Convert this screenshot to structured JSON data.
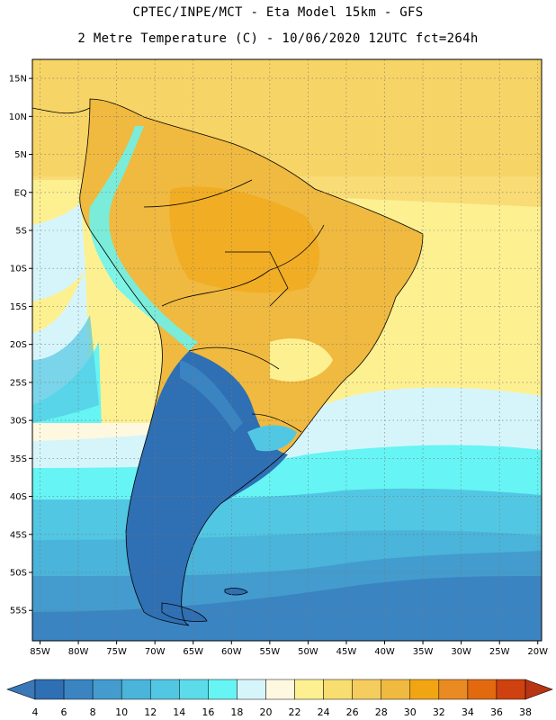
{
  "header": {
    "line1": "CPTEC/INPE/MCT -  Eta Model 15km - GFS",
    "line2": "2 Metre Temperature (C) - 10/06/2020 12UTC fct=264h"
  },
  "map": {
    "lon_range": [
      -86,
      -19.5
    ],
    "lat_range": [
      -59,
      17.5
    ],
    "lat_labels": [
      "15N",
      "10N",
      "5N",
      "EQ",
      "5S",
      "10S",
      "15S",
      "20S",
      "25S",
      "30S",
      "35S",
      "40S",
      "45S",
      "50S",
      "55S"
    ],
    "lat_values": [
      15,
      10,
      5,
      0,
      -5,
      -10,
      -15,
      -20,
      -25,
      -30,
      -35,
      -40,
      -45,
      -50,
      -55
    ],
    "lon_labels": [
      "85W",
      "80W",
      "75W",
      "70W",
      "65W",
      "60W",
      "55W",
      "50W",
      "45W",
      "40W",
      "35W",
      "30W",
      "25W",
      "20W"
    ],
    "lon_values": [
      -85,
      -80,
      -75,
      -70,
      -65,
      -60,
      -55,
      -50,
      -45,
      -40,
      -35,
      -30,
      -25,
      -20
    ],
    "grid": "dotted"
  },
  "colorbar": {
    "labels": [
      "4",
      "6",
      "8",
      "10",
      "12",
      "14",
      "16",
      "18",
      "20",
      "22",
      "24",
      "26",
      "28",
      "30",
      "32",
      "34",
      "36",
      "38"
    ],
    "colors": [
      "#3a78b8",
      "#2f6fb3",
      "#3b84c2",
      "#439ccd",
      "#4ab4da",
      "#52c7e3",
      "#5cdbe9",
      "#66f4f4",
      "#d6f5fb",
      "#fff8e0",
      "#fdf091",
      "#f8dd70",
      "#f5cc5e",
      "#f0b93f",
      "#f2a512",
      "#ea8a22",
      "#e2690e",
      "#cf4210",
      "#b83412"
    ]
  }
}
